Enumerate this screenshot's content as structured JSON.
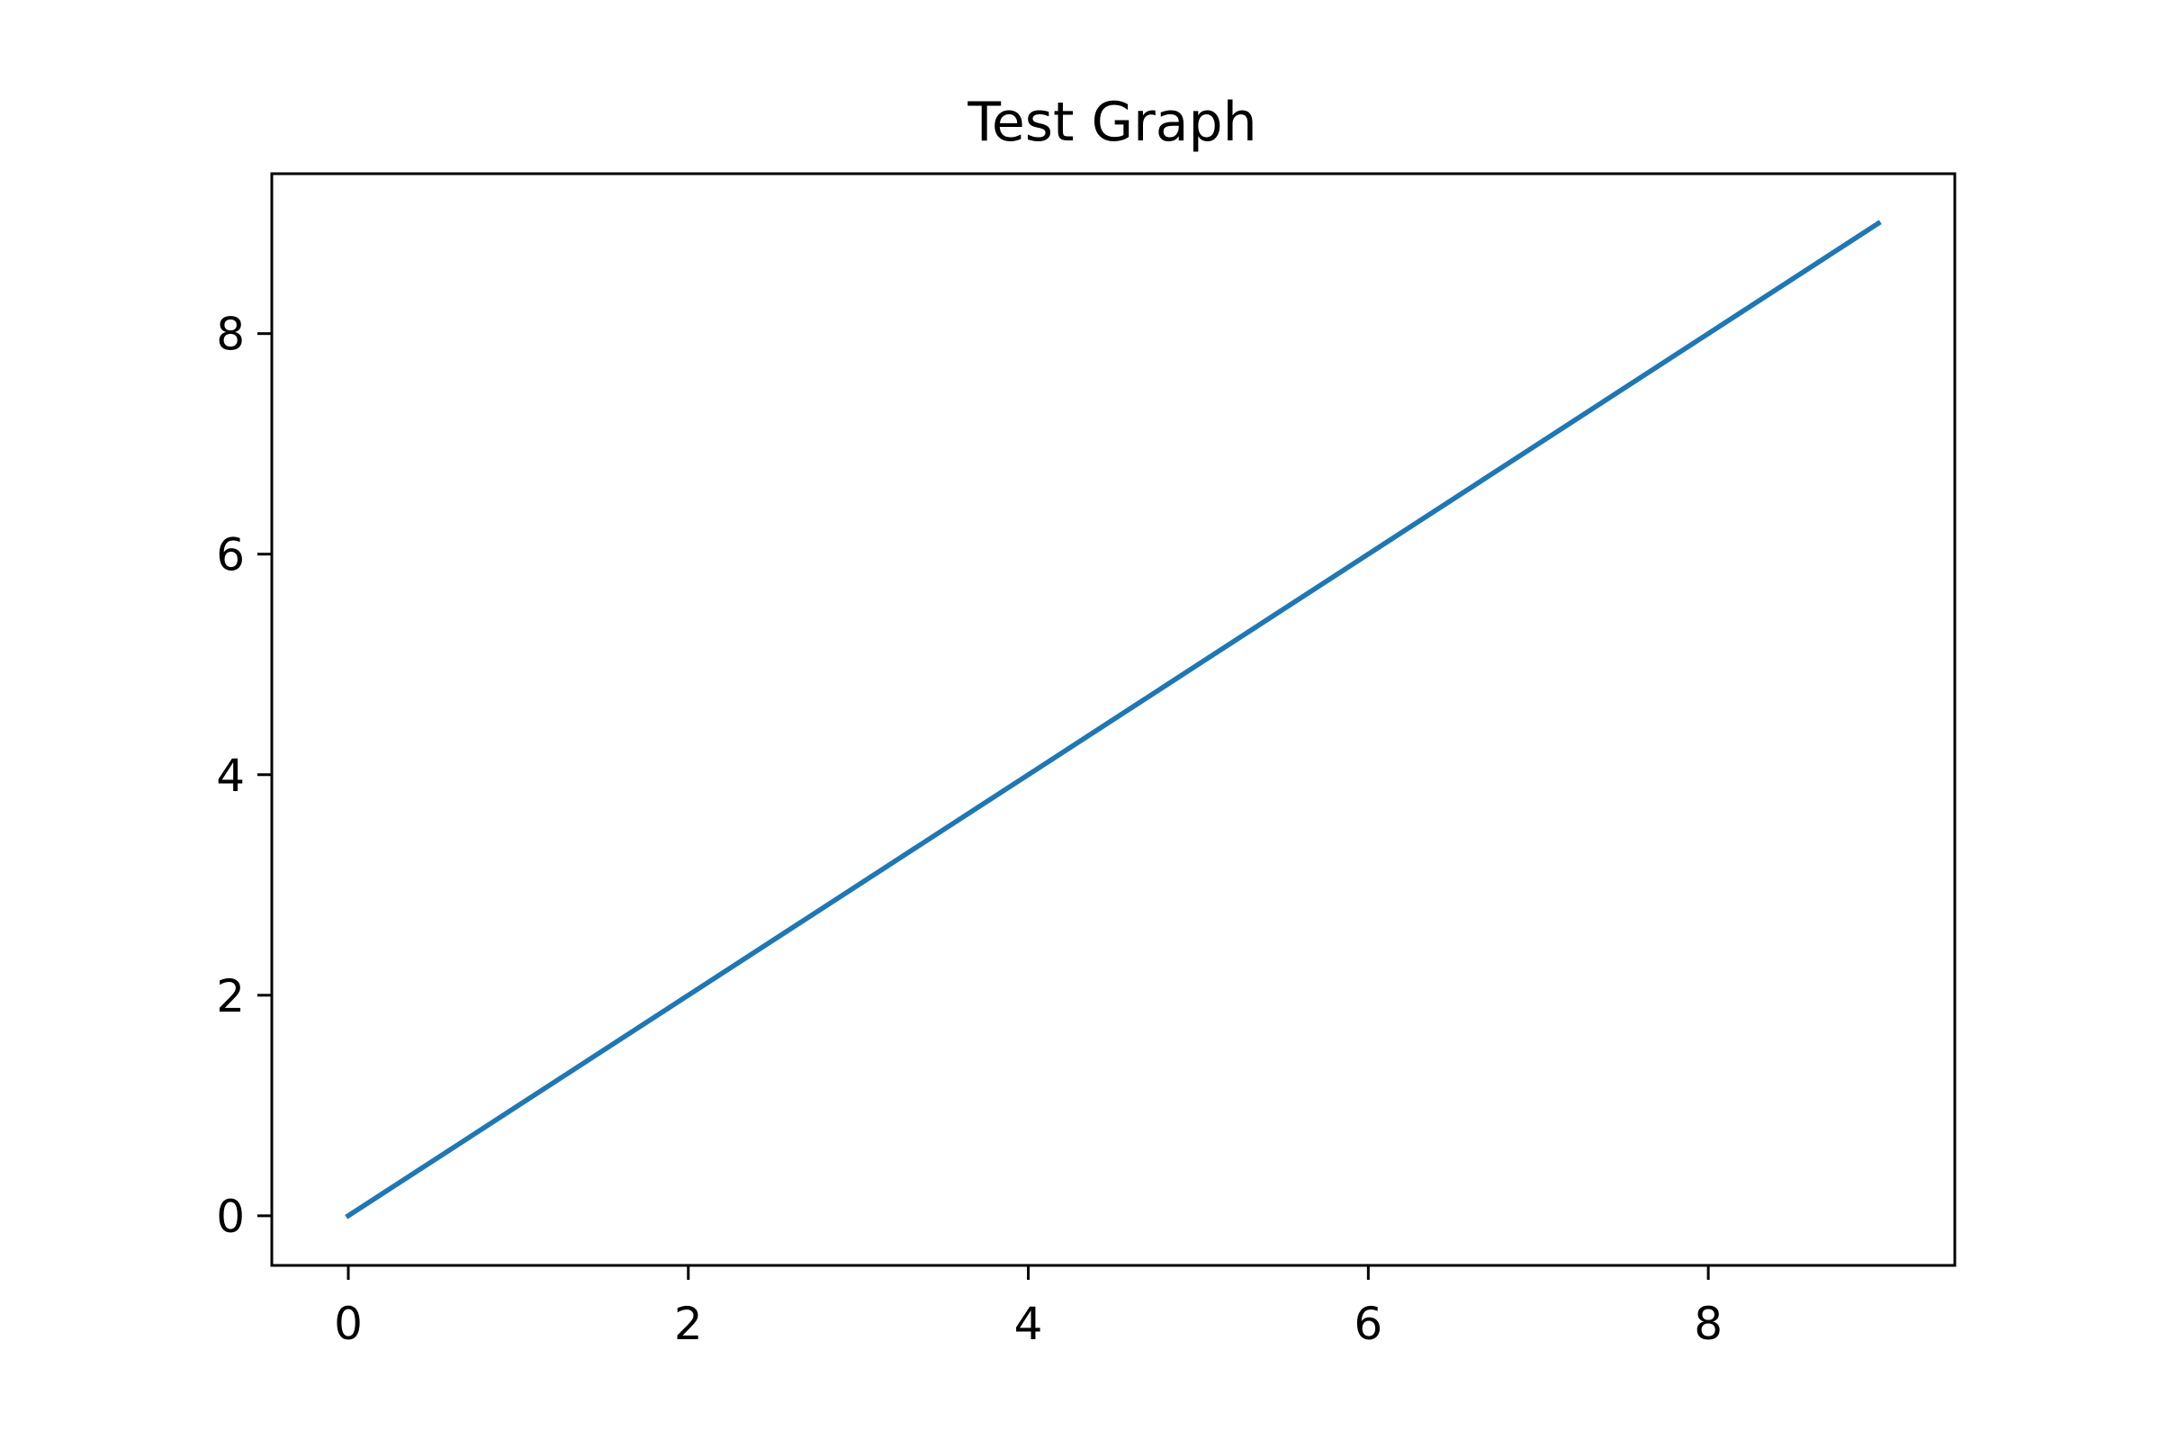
{
  "chart_data": {
    "type": "line",
    "title": "Test Graph",
    "xlabel": "",
    "ylabel": "",
    "xlim": [
      -0.45,
      9.45
    ],
    "ylim": [
      -0.45,
      9.45
    ],
    "x_ticks": [
      0,
      2,
      4,
      6,
      8
    ],
    "y_ticks": [
      0,
      2,
      4,
      6,
      8
    ],
    "x_tick_labels": [
      "0",
      "2",
      "4",
      "6",
      "8"
    ],
    "y_tick_labels": [
      "0",
      "2",
      "4",
      "6",
      "8"
    ],
    "grid": false,
    "series": [
      {
        "color": "#1f77b4",
        "x": [
          0,
          1,
          2,
          3,
          4,
          5,
          6,
          7,
          8,
          9
        ],
        "y": [
          0,
          1,
          2,
          3,
          4,
          5,
          6,
          7,
          8,
          9
        ]
      }
    ]
  }
}
